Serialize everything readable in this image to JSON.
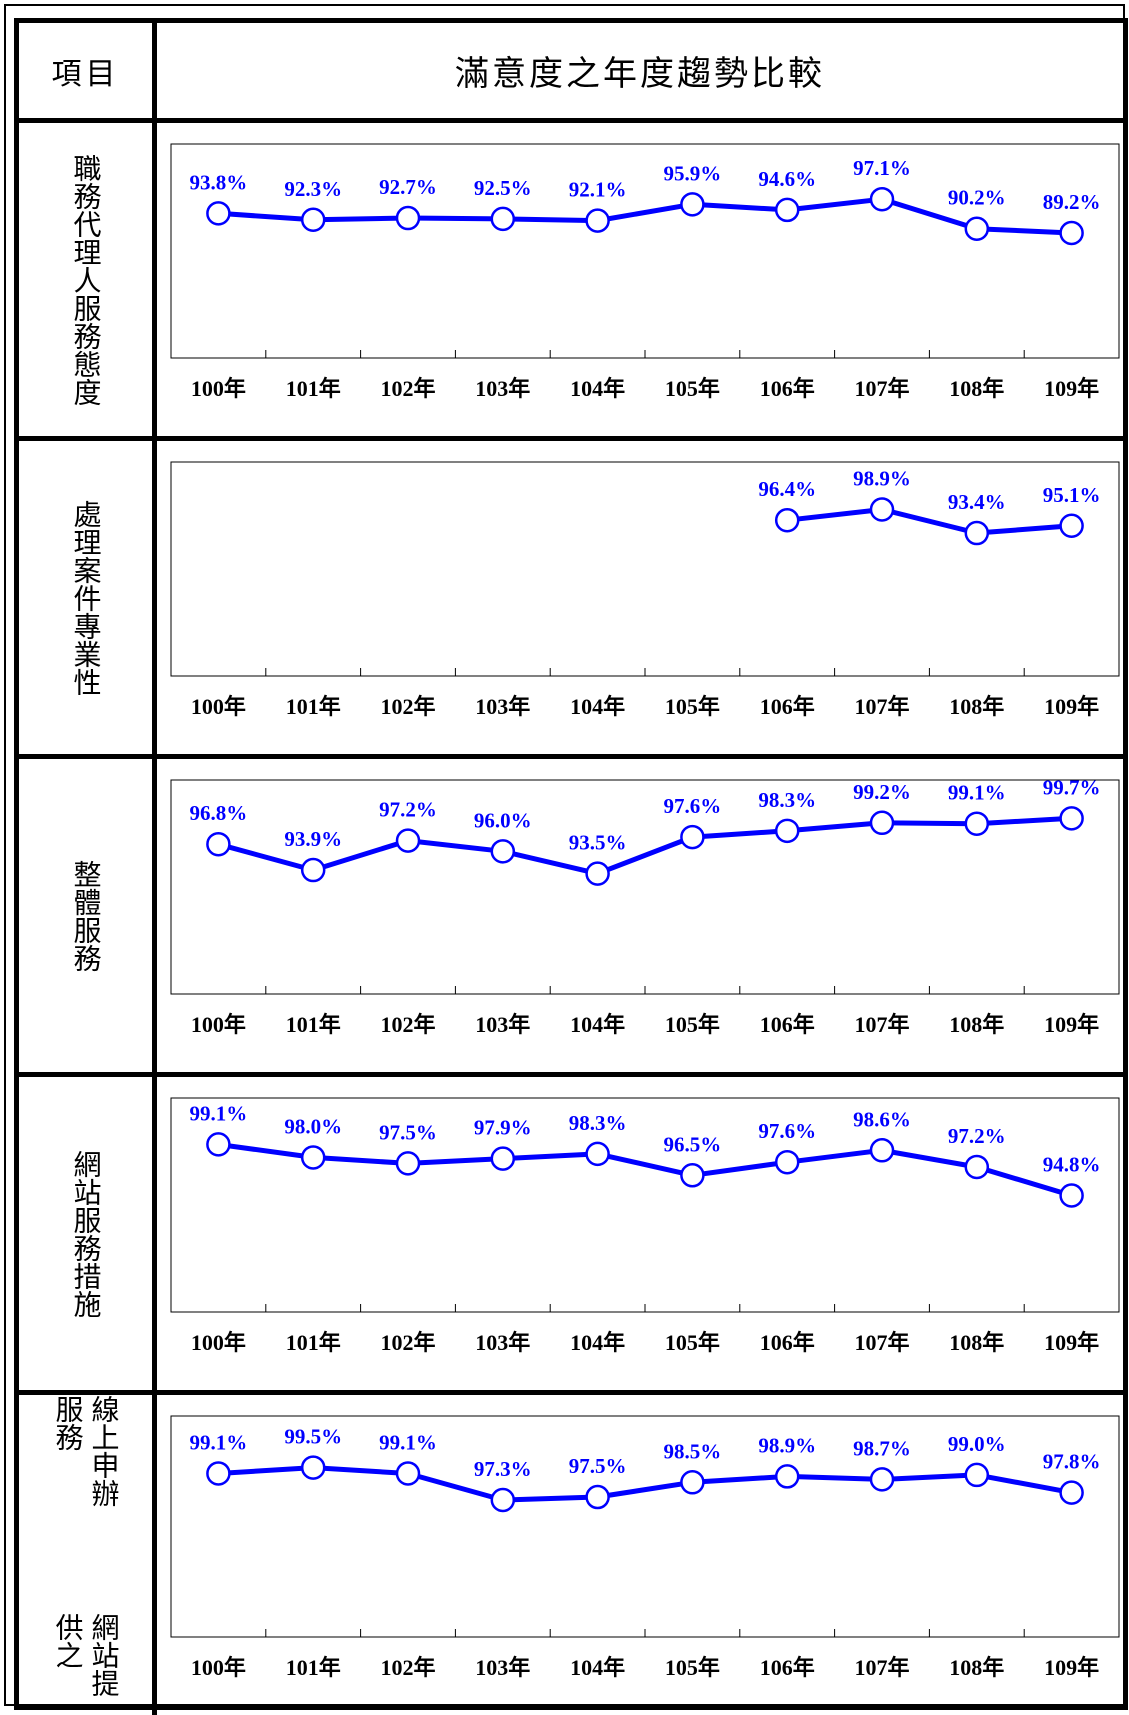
{
  "header": {
    "item_label": "項目",
    "title": "滿意度之年度趨勢比較"
  },
  "colors": {
    "line": "#0000ff",
    "label": "#0000ff",
    "marker_fill": "#ffffff"
  },
  "rows": [
    {
      "label": "職務代理人服務態度"
    },
    {
      "label": "處理案件專業性"
    },
    {
      "label": "整體服務"
    },
    {
      "label": "網站服務措施"
    },
    {
      "label_col1": "網站提供之",
      "label_col2": "線上申辦服務"
    }
  ],
  "chart_data": [
    {
      "type": "line",
      "categories": [
        "100年",
        "101年",
        "102年",
        "103年",
        "104年",
        "105年",
        "106年",
        "107年",
        "108年",
        "109年"
      ],
      "series": [
        {
          "values": [
            93.8,
            92.3,
            92.7,
            92.5,
            92.1,
            95.9,
            94.6,
            97.1,
            90.2,
            89.2
          ],
          "labels": [
            "93.8%",
            "92.3%",
            "92.7%",
            "92.5%",
            "92.1%",
            "95.9%",
            "94.6%",
            "97.1%",
            "90.2%",
            "89.2%"
          ]
        }
      ],
      "ylim": [
        60,
        110
      ],
      "grid": false
    },
    {
      "type": "line",
      "categories": [
        "100年",
        "101年",
        "102年",
        "103年",
        "104年",
        "105年",
        "106年",
        "107年",
        "108年",
        "109年"
      ],
      "series": [
        {
          "values": [
            null,
            null,
            null,
            null,
            null,
            null,
            96.4,
            98.9,
            93.4,
            95.1
          ],
          "labels": [
            null,
            null,
            null,
            null,
            null,
            null,
            "96.4%",
            "98.9%",
            "93.4%",
            "95.1%"
          ]
        }
      ],
      "ylim": [
        60,
        110
      ],
      "grid": false
    },
    {
      "type": "line",
      "categories": [
        "100年",
        "101年",
        "102年",
        "103年",
        "104年",
        "105年",
        "106年",
        "107年",
        "108年",
        "109年"
      ],
      "series": [
        {
          "values": [
            96.8,
            93.9,
            97.2,
            96.0,
            93.5,
            97.6,
            98.3,
            99.2,
            99.1,
            99.7
          ],
          "labels": [
            "96.8%",
            "93.9%",
            "97.2%",
            "96.0%",
            "93.5%",
            "97.6%",
            "98.3%",
            "99.2%",
            "99.1%",
            "99.7%"
          ]
        }
      ],
      "ylim": [
        80,
        104
      ],
      "grid": false
    },
    {
      "type": "line",
      "categories": [
        "100年",
        "101年",
        "102年",
        "103年",
        "104年",
        "105年",
        "106年",
        "107年",
        "108年",
        "109年"
      ],
      "series": [
        {
          "values": [
            99.1,
            98.0,
            97.5,
            97.9,
            98.3,
            96.5,
            97.6,
            98.6,
            97.2,
            94.8
          ],
          "labels": [
            "99.1%",
            "98.0%",
            "97.5%",
            "97.9%",
            "98.3%",
            "96.5%",
            "97.6%",
            "98.6%",
            "97.2%",
            "94.8%"
          ]
        }
      ],
      "ylim": [
        85,
        103
      ],
      "grid": false
    },
    {
      "type": "line",
      "categories": [
        "100年",
        "101年",
        "102年",
        "103年",
        "104年",
        "105年",
        "106年",
        "107年",
        "108年",
        "109年"
      ],
      "series": [
        {
          "values": [
            99.1,
            99.5,
            99.1,
            97.3,
            97.5,
            98.5,
            98.9,
            98.7,
            99.0,
            97.8
          ],
          "labels": [
            "99.1%",
            "99.5%",
            "99.1%",
            "97.3%",
            "97.5%",
            "98.5%",
            "98.9%",
            "98.7%",
            "99.0%",
            "97.8%"
          ]
        }
      ],
      "ylim": [
        88,
        103
      ],
      "grid": false
    }
  ]
}
